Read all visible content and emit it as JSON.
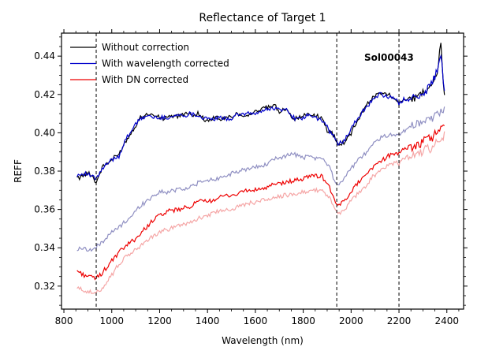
{
  "chart_data": {
    "type": "line",
    "title": "Reflectance of Target 1",
    "xlabel": "Wavelength (nm)",
    "ylabel": "REFF",
    "xlim": [
      790,
      2470
    ],
    "ylim": [
      0.308,
      0.452
    ],
    "x_ticks": [
      800,
      1000,
      1200,
      1400,
      1600,
      1800,
      2000,
      2200,
      2400
    ],
    "y_ticks": [
      0.32,
      0.34,
      0.36,
      0.38,
      0.4,
      0.42,
      0.44
    ],
    "y_tick_labels": [
      "0.32",
      "0.34",
      "0.36",
      "0.38",
      "0.40",
      "0.42",
      "0.44"
    ],
    "legend_position": "upper-left",
    "grid": false,
    "annotation": "Sol00043",
    "vlines": [
      935,
      1940,
      2200
    ],
    "series": [
      {
        "name": "Without correction",
        "color": "#000000",
        "in_legend": true,
        "x": [
          855,
          880,
          910,
          935,
          960,
          1000,
          1030,
          1060,
          1090,
          1120,
          1150,
          1180,
          1210,
          1240,
          1270,
          1300,
          1330,
          1360,
          1400,
          1430,
          1460,
          1490,
          1520,
          1560,
          1600,
          1640,
          1680,
          1700,
          1730,
          1760,
          1790,
          1820,
          1850,
          1880,
          1900,
          1920,
          1935,
          1950,
          1970,
          2000,
          2030,
          2060,
          2090,
          2120,
          2150,
          2180,
          2200,
          2220,
          2250,
          2280,
          2310,
          2340,
          2360,
          2375,
          2390
        ],
        "y": [
          0.376,
          0.378,
          0.379,
          0.374,
          0.382,
          0.386,
          0.389,
          0.396,
          0.402,
          0.408,
          0.41,
          0.409,
          0.407,
          0.409,
          0.408,
          0.41,
          0.409,
          0.41,
          0.406,
          0.408,
          0.407,
          0.408,
          0.41,
          0.409,
          0.411,
          0.413,
          0.414,
          0.411,
          0.413,
          0.407,
          0.408,
          0.41,
          0.409,
          0.407,
          0.401,
          0.4,
          0.397,
          0.393,
          0.395,
          0.4,
          0.407,
          0.414,
          0.418,
          0.421,
          0.42,
          0.419,
          0.416,
          0.417,
          0.418,
          0.42,
          0.422,
          0.427,
          0.431,
          0.446,
          0.418
        ]
      },
      {
        "name": "With wavelength corrected",
        "color": "#0000cc",
        "in_legend": true,
        "x": [
          855,
          880,
          910,
          935,
          960,
          1000,
          1030,
          1060,
          1090,
          1120,
          1150,
          1180,
          1210,
          1240,
          1270,
          1300,
          1330,
          1360,
          1400,
          1430,
          1460,
          1490,
          1520,
          1560,
          1600,
          1640,
          1680,
          1700,
          1730,
          1760,
          1790,
          1820,
          1850,
          1880,
          1900,
          1920,
          1935,
          1950,
          1970,
          2000,
          2030,
          2060,
          2090,
          2120,
          2150,
          2180,
          2200,
          2220,
          2250,
          2280,
          2310,
          2340,
          2360,
          2375,
          2390
        ],
        "y": [
          0.378,
          0.379,
          0.378,
          0.376,
          0.381,
          0.386,
          0.388,
          0.397,
          0.403,
          0.407,
          0.409,
          0.408,
          0.408,
          0.408,
          0.409,
          0.409,
          0.41,
          0.409,
          0.407,
          0.407,
          0.408,
          0.407,
          0.409,
          0.41,
          0.41,
          0.412,
          0.413,
          0.412,
          0.412,
          0.408,
          0.407,
          0.409,
          0.408,
          0.406,
          0.403,
          0.399,
          0.396,
          0.394,
          0.396,
          0.402,
          0.408,
          0.413,
          0.417,
          0.42,
          0.419,
          0.418,
          0.415,
          0.418,
          0.417,
          0.419,
          0.421,
          0.426,
          0.433,
          0.442,
          0.42
        ]
      },
      {
        "name": "With DN corrected",
        "color": "#ee0000",
        "in_legend": true,
        "x": [
          855,
          880,
          910,
          935,
          960,
          1000,
          1040,
          1080,
          1120,
          1160,
          1200,
          1240,
          1280,
          1320,
          1360,
          1400,
          1440,
          1480,
          1520,
          1560,
          1600,
          1640,
          1680,
          1720,
          1760,
          1800,
          1840,
          1880,
          1910,
          1930,
          1950,
          1980,
          2010,
          2050,
          2090,
          2130,
          2170,
          2200,
          2230,
          2270,
          2310,
          2340,
          2370,
          2390
        ],
        "y": [
          0.328,
          0.326,
          0.325,
          0.324,
          0.327,
          0.333,
          0.339,
          0.343,
          0.347,
          0.353,
          0.357,
          0.359,
          0.36,
          0.361,
          0.364,
          0.364,
          0.366,
          0.367,
          0.368,
          0.37,
          0.37,
          0.371,
          0.373,
          0.374,
          0.375,
          0.376,
          0.378,
          0.377,
          0.372,
          0.364,
          0.362,
          0.366,
          0.371,
          0.377,
          0.382,
          0.386,
          0.389,
          0.389,
          0.392,
          0.393,
          0.396,
          0.398,
          0.402,
          0.402
        ]
      },
      {
        "color": "#8f8fc2",
        "in_legend": false,
        "x": [
          855,
          880,
          910,
          935,
          960,
          1000,
          1040,
          1080,
          1120,
          1160,
          1200,
          1240,
          1280,
          1320,
          1360,
          1400,
          1440,
          1480,
          1520,
          1560,
          1600,
          1640,
          1680,
          1720,
          1760,
          1800,
          1840,
          1880,
          1910,
          1930,
          1950,
          1980,
          2010,
          2050,
          2090,
          2130,
          2170,
          2200,
          2230,
          2270,
          2310,
          2340,
          2370,
          2390
        ],
        "y": [
          0.339,
          0.34,
          0.339,
          0.34,
          0.343,
          0.348,
          0.352,
          0.356,
          0.362,
          0.366,
          0.369,
          0.369,
          0.371,
          0.371,
          0.374,
          0.375,
          0.376,
          0.378,
          0.379,
          0.381,
          0.382,
          0.383,
          0.386,
          0.388,
          0.389,
          0.387,
          0.387,
          0.386,
          0.383,
          0.375,
          0.373,
          0.378,
          0.383,
          0.388,
          0.394,
          0.398,
          0.399,
          0.399,
          0.402,
          0.405,
          0.406,
          0.408,
          0.41,
          0.413
        ]
      },
      {
        "color": "#f5a6a6",
        "in_legend": false,
        "x": [
          855,
          880,
          910,
          935,
          960,
          1000,
          1040,
          1080,
          1120,
          1160,
          1200,
          1240,
          1280,
          1320,
          1360,
          1400,
          1440,
          1480,
          1520,
          1560,
          1600,
          1640,
          1680,
          1720,
          1760,
          1800,
          1840,
          1880,
          1910,
          1930,
          1950,
          1980,
          2010,
          2050,
          2090,
          2130,
          2170,
          2200,
          2230,
          2270,
          2310,
          2340,
          2370,
          2390
        ],
        "y": [
          0.319,
          0.318,
          0.317,
          0.316,
          0.319,
          0.326,
          0.333,
          0.337,
          0.341,
          0.345,
          0.348,
          0.35,
          0.352,
          0.353,
          0.355,
          0.357,
          0.359,
          0.36,
          0.361,
          0.363,
          0.364,
          0.365,
          0.366,
          0.367,
          0.368,
          0.369,
          0.37,
          0.37,
          0.366,
          0.36,
          0.358,
          0.361,
          0.366,
          0.371,
          0.377,
          0.381,
          0.384,
          0.384,
          0.387,
          0.388,
          0.391,
          0.393,
          0.397,
          0.398
        ]
      }
    ]
  }
}
